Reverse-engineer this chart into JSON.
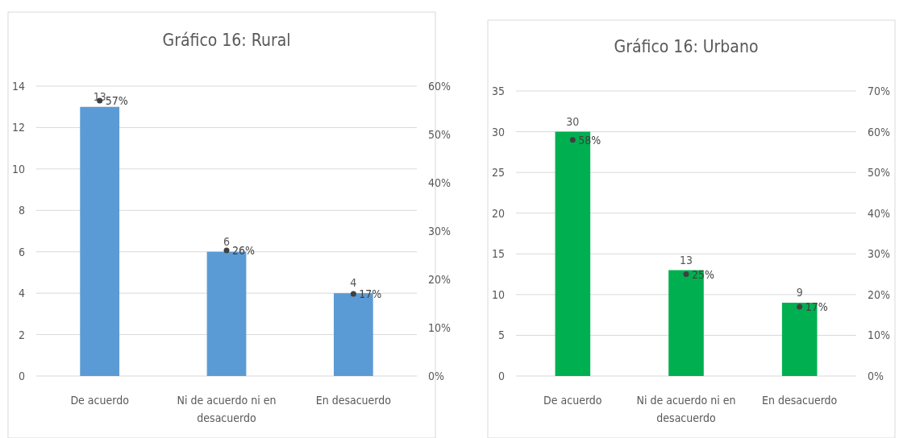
{
  "chart_data": [
    {
      "type": "bar",
      "title": "Gráfico 16: Rural",
      "categories": [
        "De acuerdo",
        "Ni de acuerdo ni en desacuerdo",
        "En desacuerdo"
      ],
      "series": [
        {
          "color": "#5b9bd5",
          "values": [
            13,
            6,
            4
          ],
          "data_labels": true
        },
        {
          "type": "scatter",
          "axis": "y2",
          "marker": "circle",
          "color": "#404040",
          "values": [
            57,
            26,
            17
          ],
          "value_labels": [
            "57%",
            "26%",
            "17%"
          ]
        }
      ],
      "ylim": [
        0,
        14
      ],
      "yticks": [
        0,
        2,
        4,
        6,
        8,
        10,
        12,
        14
      ],
      "y2lim": [
        0,
        60
      ],
      "y2ticks": [
        {
          "value": 0,
          "label": "0%"
        },
        {
          "value": 10,
          "label": "10%"
        },
        {
          "value": 20,
          "label": "20%"
        },
        {
          "value": 30,
          "label": "30%"
        },
        {
          "value": 40,
          "label": "40%"
        },
        {
          "value": 50,
          "label": "50%"
        },
        {
          "value": 60,
          "label": "60%"
        }
      ],
      "grid": "y"
    },
    {
      "type": "bar",
      "title": "Gráfico 16: Urbano",
      "categories": [
        "De acuerdo",
        "Ni de acuerdo ni en desacuerdo",
        "En desacuerdo"
      ],
      "series": [
        {
          "color": "#00b050",
          "values": [
            30,
            13,
            9
          ],
          "data_labels": true
        },
        {
          "type": "scatter",
          "axis": "y2",
          "marker": "circle",
          "color": "#404040",
          "values": [
            58,
            25,
            17
          ],
          "value_labels": [
            "58%",
            "25%",
            "17%"
          ]
        }
      ],
      "ylim": [
        0,
        35
      ],
      "yticks": [
        0,
        5,
        10,
        15,
        20,
        25,
        30,
        35
      ],
      "y2lim": [
        0,
        70
      ],
      "y2ticks": [
        {
          "value": 0,
          "label": "0%"
        },
        {
          "value": 10,
          "label": "10%"
        },
        {
          "value": 20,
          "label": "20%"
        },
        {
          "value": 30,
          "label": "30%"
        },
        {
          "value": 40,
          "label": "40%"
        },
        {
          "value": 50,
          "label": "50%"
        },
        {
          "value": 60,
          "label": "60%"
        },
        {
          "value": 70,
          "label": "70%"
        }
      ],
      "grid": "y"
    }
  ]
}
